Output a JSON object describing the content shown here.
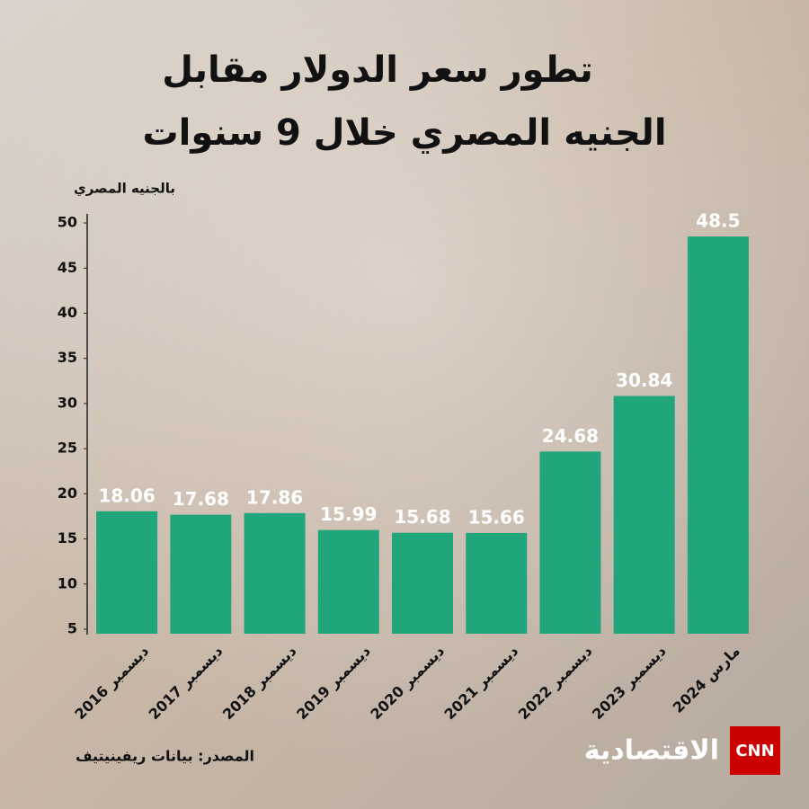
{
  "chart_data": {
    "type": "bar",
    "title": [
      "تطور سعر الدولار مقابل",
      "الجنيه المصري خلال 9 سنوات"
    ],
    "y_label": "بالجنيه المصري",
    "categories": [
      "ديسمبر 2016",
      "ديسمبر 2017",
      "ديسمبر 2018",
      "ديسمبر 2019",
      "ديسمبر 2020",
      "ديسمبر 2021",
      "ديسمبر 2022",
      "ديسمبر 2023",
      "مارس 2024"
    ],
    "values": [
      18.06,
      17.68,
      17.86,
      15.99,
      15.68,
      15.66,
      24.68,
      30.84,
      48.5
    ],
    "color": "#21a57a",
    "ylim": [
      4.5,
      51
    ],
    "yticks": [
      5,
      10,
      15,
      20,
      25,
      30,
      35,
      40,
      45,
      50
    ],
    "grid": false,
    "source": "المصدر: بيانات ريفينيتيف"
  },
  "logo": {
    "network": "CNN",
    "name": "الاقتصادية"
  }
}
